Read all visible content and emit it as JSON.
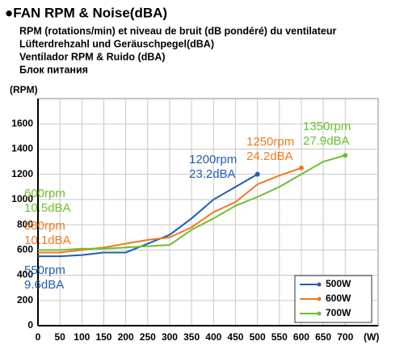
{
  "chart_data": {
    "type": "line",
    "title": "●FAN RPM &  Noise(dBA)",
    "subtitles": [
      "RPM (rotations/min) et niveau de bruit (dB pondéré) du ventilateur",
      "Lüfterdrehzahl und Geräuschpegel(dBA)",
      "Ventilador RPM & Ruido (dBA)",
      "Блок питания"
    ],
    "y_label": "(RPM)",
    "x_label": "(W)",
    "x": [
      0,
      50,
      100,
      150,
      200,
      250,
      300,
      350,
      400,
      450,
      500,
      550,
      600,
      650,
      700
    ],
    "series": [
      {
        "name": "500W",
        "color": "#1f5fae",
        "values": [
          550,
          550,
          560,
          580,
          580,
          650,
          720,
          850,
          1000,
          1100,
          1200,
          null,
          null,
          null,
          null
        ]
      },
      {
        "name": "600W",
        "color": "#f07a1e",
        "values": [
          580,
          580,
          600,
          620,
          650,
          680,
          700,
          780,
          900,
          980,
          1120,
          1190,
          1250,
          null,
          null
        ]
      },
      {
        "name": "700W",
        "color": "#6cc02e",
        "values": [
          600,
          600,
          610,
          610,
          620,
          630,
          640,
          760,
          850,
          950,
          1020,
          1100,
          1200,
          1300,
          1350
        ]
      }
    ],
    "annotations": [
      {
        "lines": [
          "600rpm",
          "10.5dBA"
        ],
        "color": "#6cc02e"
      },
      {
        "lines": [
          "580rpm",
          "10.1dBA"
        ],
        "color": "#f07a1e"
      },
      {
        "lines": [
          "550rpm",
          "9.6dBA"
        ],
        "color": "#1f5fae"
      },
      {
        "lines": [
          "1200rpm",
          "23.2dBA"
        ],
        "color": "#1f5fae"
      },
      {
        "lines": [
          "1250rpm",
          "24.2dBA"
        ],
        "color": "#f07a1e"
      },
      {
        "lines": [
          "1350rpm",
          "27.9dBA"
        ],
        "color": "#6cc02e"
      }
    ],
    "xlim": [
      0,
      775
    ],
    "ylim": [
      0,
      1800
    ],
    "xticks": [
      0,
      50,
      100,
      150,
      200,
      250,
      300,
      350,
      400,
      450,
      500,
      550,
      600,
      650,
      700
    ],
    "yticks": [
      0,
      200,
      400,
      600,
      800,
      1000,
      1200,
      1400,
      1600
    ],
    "grid": true,
    "legend": "lower right"
  }
}
